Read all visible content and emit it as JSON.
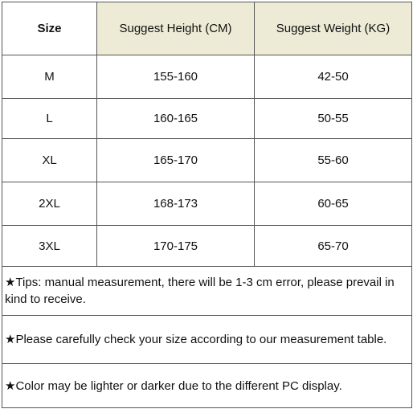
{
  "table": {
    "header": [
      "Size",
      "Suggest Height (CM)",
      "Suggest Weight (KG)"
    ],
    "rows": [
      [
        "M",
        "155-160",
        "42-50"
      ],
      [
        "L",
        "160-165",
        "50-55"
      ],
      [
        "XL",
        "165-170",
        "55-60"
      ],
      [
        "2XL",
        "168-173",
        "60-65"
      ],
      [
        "3XL",
        "170-175",
        "65-70"
      ]
    ]
  },
  "notes": [
    "★Tips: manual measurement, there will be 1-3 cm error, please prevail in kind to receive.",
    "★Please carefully check your size according to our measurement table.",
    "★Color may be lighter or darker due to the different PC display."
  ]
}
